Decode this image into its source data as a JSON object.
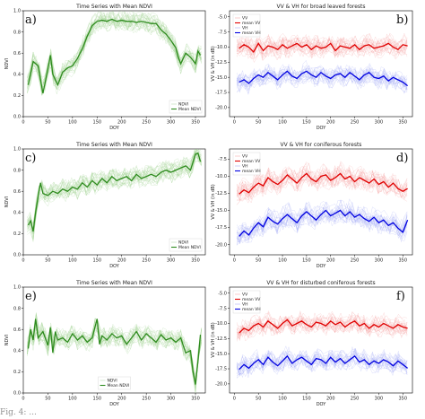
{
  "caption": "Fig. 4: ...",
  "chart_data": [
    {
      "id": "a",
      "type": "line",
      "title": "Time Series with Mean NDVI",
      "panel_label": "a)",
      "xlabel": "DOY",
      "ylabel": "NDVI",
      "xlim": [
        0,
        370
      ],
      "ylim": [
        0,
        1.0
      ],
      "xticks": [
        0,
        50,
        100,
        150,
        200,
        250,
        300,
        350
      ],
      "yticks": [
        0.0,
        0.2,
        0.4,
        0.6,
        0.8,
        1.0
      ],
      "legend": {
        "position": "lower-right",
        "entries": [
          "NDVI",
          "Mean NDVI"
        ]
      },
      "series": [
        {
          "name": "Mean NDVI",
          "color": "#2e8b1e",
          "x": [
            10,
            20,
            30,
            40,
            50,
            55,
            60,
            70,
            80,
            90,
            100,
            110,
            120,
            130,
            140,
            150,
            160,
            170,
            180,
            190,
            200,
            210,
            220,
            230,
            240,
            250,
            260,
            270,
            280,
            290,
            300,
            310,
            315,
            320,
            330,
            340,
            350,
            355,
            360
          ],
          "y": [
            0.3,
            0.52,
            0.48,
            0.22,
            0.45,
            0.58,
            0.4,
            0.3,
            0.42,
            0.46,
            0.48,
            0.55,
            0.64,
            0.76,
            0.86,
            0.9,
            0.91,
            0.9,
            0.92,
            0.9,
            0.91,
            0.9,
            0.9,
            0.89,
            0.9,
            0.89,
            0.88,
            0.88,
            0.82,
            0.78,
            0.72,
            0.65,
            0.56,
            0.5,
            0.6,
            0.56,
            0.5,
            0.62,
            0.58
          ]
        }
      ]
    },
    {
      "id": "b",
      "type": "line",
      "title": "VV & VH for broad leaved forests",
      "panel_label": "b)",
      "xlabel": "DOY",
      "ylabel": "VV & VH (in dB)",
      "xlim": [
        -10,
        370
      ],
      "ylim": [
        -21.5,
        -4
      ],
      "xticks": [
        0,
        50,
        100,
        150,
        200,
        250,
        300,
        350
      ],
      "yticks": [
        -20.0,
        -17.5,
        -15.0,
        -12.5,
        -10.0,
        -7.5,
        -5.0
      ],
      "legend": {
        "position": "upper-left",
        "entries": [
          "VV",
          "mean VV",
          "VH",
          "mean VH"
        ]
      },
      "series": [
        {
          "name": "mean VV",
          "color": "#e00000",
          "x": [
            10,
            20,
            30,
            40,
            50,
            60,
            70,
            80,
            90,
            100,
            110,
            120,
            130,
            140,
            150,
            160,
            170,
            180,
            190,
            200,
            210,
            220,
            230,
            240,
            250,
            260,
            270,
            280,
            290,
            300,
            310,
            320,
            330,
            340,
            350,
            360
          ],
          "y": [
            -10.2,
            -9.6,
            -10.0,
            -10.8,
            -9.4,
            -10.6,
            -9.8,
            -10.0,
            -10.4,
            -9.6,
            -10.2,
            -9.8,
            -9.4,
            -10.0,
            -9.6,
            -10.4,
            -9.8,
            -10.2,
            -10.0,
            -9.4,
            -10.6,
            -9.8,
            -10.0,
            -10.2,
            -9.6,
            -10.4,
            -9.8,
            -9.6,
            -10.2,
            -10.0,
            -9.8,
            -9.4,
            -10.0,
            -10.4,
            -9.6,
            -9.8
          ]
        },
        {
          "name": "mean VH",
          "color": "#0000e0",
          "x": [
            10,
            20,
            30,
            40,
            50,
            60,
            70,
            80,
            90,
            100,
            110,
            120,
            130,
            140,
            150,
            160,
            170,
            180,
            190,
            200,
            210,
            220,
            230,
            240,
            250,
            260,
            270,
            280,
            290,
            300,
            310,
            320,
            330,
            340,
            350,
            360
          ],
          "y": [
            -15.8,
            -15.4,
            -16.0,
            -15.2,
            -14.6,
            -15.0,
            -14.2,
            -14.8,
            -15.4,
            -14.6,
            -14.0,
            -14.8,
            -15.2,
            -14.4,
            -14.0,
            -14.6,
            -15.0,
            -14.2,
            -14.8,
            -15.2,
            -14.6,
            -14.4,
            -15.0,
            -14.2,
            -14.8,
            -15.4,
            -14.6,
            -14.2,
            -15.0,
            -15.2,
            -14.8,
            -15.6,
            -15.0,
            -15.4,
            -15.8,
            -16.4
          ]
        }
      ]
    },
    {
      "id": "c",
      "type": "line",
      "title": "Time Series with Mean NDVI",
      "panel_label": "c)",
      "xlabel": "DOY",
      "ylabel": "NDVI",
      "xlim": [
        0,
        370
      ],
      "ylim": [
        0,
        1.0
      ],
      "xticks": [
        0,
        50,
        100,
        150,
        200,
        250,
        300,
        350
      ],
      "yticks": [
        0.0,
        0.2,
        0.4,
        0.6,
        0.8,
        1.0
      ],
      "legend": {
        "position": "lower-right",
        "entries": [
          "NDVI",
          "Mean NDVI"
        ]
      },
      "series": [
        {
          "name": "Mean NDVI",
          "color": "#2e8b1e",
          "x": [
            10,
            15,
            20,
            25,
            30,
            35,
            40,
            50,
            60,
            70,
            80,
            90,
            100,
            110,
            120,
            130,
            140,
            150,
            160,
            170,
            180,
            190,
            200,
            210,
            220,
            230,
            240,
            250,
            260,
            270,
            280,
            290,
            300,
            310,
            320,
            330,
            340,
            350,
            355,
            360
          ],
          "y": [
            0.28,
            0.32,
            0.22,
            0.4,
            0.55,
            0.68,
            0.58,
            0.56,
            0.6,
            0.58,
            0.62,
            0.6,
            0.64,
            0.62,
            0.68,
            0.64,
            0.7,
            0.66,
            0.72,
            0.68,
            0.74,
            0.7,
            0.72,
            0.74,
            0.7,
            0.76,
            0.72,
            0.74,
            0.76,
            0.74,
            0.78,
            0.8,
            0.78,
            0.8,
            0.82,
            0.84,
            0.8,
            0.95,
            0.96,
            0.88
          ]
        }
      ]
    },
    {
      "id": "d",
      "type": "line",
      "title": "VV & VH for coniferous forests",
      "panel_label": "d)",
      "xlabel": "DOY",
      "ylabel": "VV & VH (in dB)",
      "xlim": [
        -10,
        370
      ],
      "ylim": [
        -21.5,
        -6
      ],
      "xticks": [
        0,
        50,
        100,
        150,
        200,
        250,
        300,
        350
      ],
      "yticks": [
        -20.0,
        -17.5,
        -15.0,
        -12.5,
        -10.0,
        -7.5
      ],
      "legend": {
        "position": "upper-left",
        "entries": [
          "VV",
          "mean VV",
          "VH",
          "mean VH"
        ]
      },
      "series": [
        {
          "name": "mean VV",
          "color": "#e00000",
          "x": [
            10,
            20,
            30,
            40,
            50,
            60,
            70,
            80,
            90,
            100,
            110,
            120,
            130,
            140,
            150,
            160,
            170,
            180,
            190,
            200,
            210,
            220,
            230,
            240,
            250,
            260,
            270,
            280,
            290,
            300,
            310,
            320,
            330,
            340,
            350,
            360
          ],
          "y": [
            -12.6,
            -12.0,
            -12.4,
            -11.6,
            -11.0,
            -11.4,
            -10.2,
            -10.8,
            -11.2,
            -10.6,
            -9.8,
            -10.4,
            -11.0,
            -10.2,
            -9.6,
            -10.4,
            -10.8,
            -10.0,
            -9.8,
            -10.6,
            -10.2,
            -9.6,
            -10.4,
            -10.0,
            -10.8,
            -10.2,
            -10.6,
            -11.0,
            -10.4,
            -11.2,
            -10.8,
            -11.6,
            -11.0,
            -11.8,
            -12.2,
            -11.8
          ]
        },
        {
          "name": "mean VH",
          "color": "#0000e0",
          "x": [
            10,
            20,
            30,
            40,
            50,
            60,
            70,
            80,
            90,
            100,
            110,
            120,
            130,
            140,
            150,
            160,
            170,
            180,
            190,
            200,
            210,
            220,
            230,
            240,
            250,
            260,
            270,
            280,
            290,
            300,
            310,
            320,
            330,
            340,
            350,
            360
          ],
          "y": [
            -18.8,
            -18.0,
            -18.6,
            -17.6,
            -16.8,
            -17.4,
            -16.0,
            -16.6,
            -17.0,
            -16.2,
            -15.6,
            -16.2,
            -16.8,
            -15.8,
            -15.2,
            -15.8,
            -16.4,
            -15.6,
            -15.0,
            -15.8,
            -15.4,
            -15.0,
            -15.8,
            -15.2,
            -16.0,
            -15.6,
            -16.2,
            -16.6,
            -16.0,
            -16.8,
            -16.4,
            -17.2,
            -16.8,
            -17.6,
            -18.2,
            -16.4
          ]
        }
      ]
    },
    {
      "id": "e",
      "type": "line",
      "title": "Time Series with Mean NDVI",
      "panel_label": "e)",
      "xlabel": "DOY",
      "ylabel": "NDVI",
      "xlim": [
        0,
        370
      ],
      "ylim": [
        0,
        1.0
      ],
      "xticks": [
        0,
        50,
        100,
        150,
        200,
        250,
        300,
        350
      ],
      "yticks": [
        0.0,
        0.2,
        0.4,
        0.6,
        0.8,
        1.0
      ],
      "legend": {
        "position": "lower-center",
        "entries": [
          "NDVI",
          "Mean NDVI"
        ]
      },
      "series": [
        {
          "name": "Mean NDVI",
          "color": "#2e8b1e",
          "x": [
            10,
            15,
            20,
            25,
            30,
            40,
            50,
            55,
            60,
            65,
            70,
            80,
            90,
            100,
            110,
            120,
            130,
            140,
            150,
            155,
            160,
            170,
            180,
            190,
            200,
            210,
            220,
            230,
            240,
            250,
            260,
            270,
            280,
            290,
            300,
            310,
            320,
            330,
            340,
            345,
            350,
            355,
            360
          ],
          "y": [
            0.42,
            0.6,
            0.5,
            0.7,
            0.52,
            0.58,
            0.45,
            0.62,
            0.38,
            0.58,
            0.5,
            0.52,
            0.48,
            0.56,
            0.5,
            0.54,
            0.48,
            0.52,
            0.7,
            0.46,
            0.54,
            0.5,
            0.56,
            0.52,
            0.54,
            0.46,
            0.52,
            0.58,
            0.5,
            0.56,
            0.52,
            0.48,
            0.55,
            0.5,
            0.52,
            0.48,
            0.52,
            0.38,
            0.4,
            0.2,
            0.08,
            0.3,
            0.55
          ]
        }
      ]
    },
    {
      "id": "f",
      "type": "line",
      "title": "VV & VH for disturbed coniferous forests",
      "panel_label": "f)",
      "xlabel": "DOY",
      "ylabel": "VV & VH (in dB)",
      "xlim": [
        -10,
        370
      ],
      "ylim": [
        -21.5,
        -4
      ],
      "xticks": [
        0,
        50,
        100,
        150,
        200,
        250,
        300,
        350
      ],
      "yticks": [
        -20.0,
        -17.5,
        -15.0,
        -12.5,
        -10.0,
        -7.5,
        -5.0
      ],
      "legend": {
        "position": "upper-left",
        "entries": [
          "VV",
          "mean VV",
          "VH",
          "mean VH"
        ]
      },
      "series": [
        {
          "name": "mean VV",
          "color": "#e00000",
          "x": [
            10,
            20,
            30,
            40,
            50,
            60,
            70,
            80,
            90,
            100,
            110,
            120,
            130,
            140,
            150,
            160,
            170,
            180,
            190,
            200,
            210,
            220,
            230,
            240,
            250,
            260,
            270,
            280,
            290,
            300,
            310,
            320,
            330,
            340,
            350,
            360
          ],
          "y": [
            -11.6,
            -10.8,
            -11.2,
            -10.4,
            -10.0,
            -10.6,
            -9.6,
            -10.2,
            -10.8,
            -10.0,
            -9.4,
            -10.4,
            -10.0,
            -9.6,
            -10.2,
            -10.6,
            -9.8,
            -10.0,
            -10.4,
            -9.6,
            -10.2,
            -9.8,
            -10.6,
            -10.0,
            -9.6,
            -10.4,
            -10.0,
            -10.8,
            -10.2,
            -10.6,
            -10.0,
            -10.4,
            -10.8,
            -10.2,
            -10.6,
            -10.8
          ]
        },
        {
          "name": "mean VH",
          "color": "#0000e0",
          "x": [
            10,
            20,
            30,
            40,
            50,
            60,
            70,
            80,
            90,
            100,
            110,
            120,
            130,
            140,
            150,
            160,
            170,
            180,
            190,
            200,
            210,
            220,
            230,
            240,
            250,
            260,
            270,
            280,
            290,
            300,
            310,
            320,
            330,
            340,
            350,
            360
          ],
          "y": [
            -17.6,
            -16.8,
            -17.4,
            -16.6,
            -16.0,
            -16.8,
            -15.6,
            -16.4,
            -17.0,
            -16.2,
            -15.4,
            -16.6,
            -16.0,
            -15.6,
            -16.2,
            -16.8,
            -15.8,
            -16.0,
            -16.6,
            -15.6,
            -16.4,
            -15.8,
            -16.6,
            -16.0,
            -15.4,
            -16.4,
            -16.0,
            -16.8,
            -16.2,
            -16.6,
            -16.0,
            -16.4,
            -17.0,
            -16.2,
            -16.8,
            -17.4
          ]
        }
      ]
    }
  ]
}
